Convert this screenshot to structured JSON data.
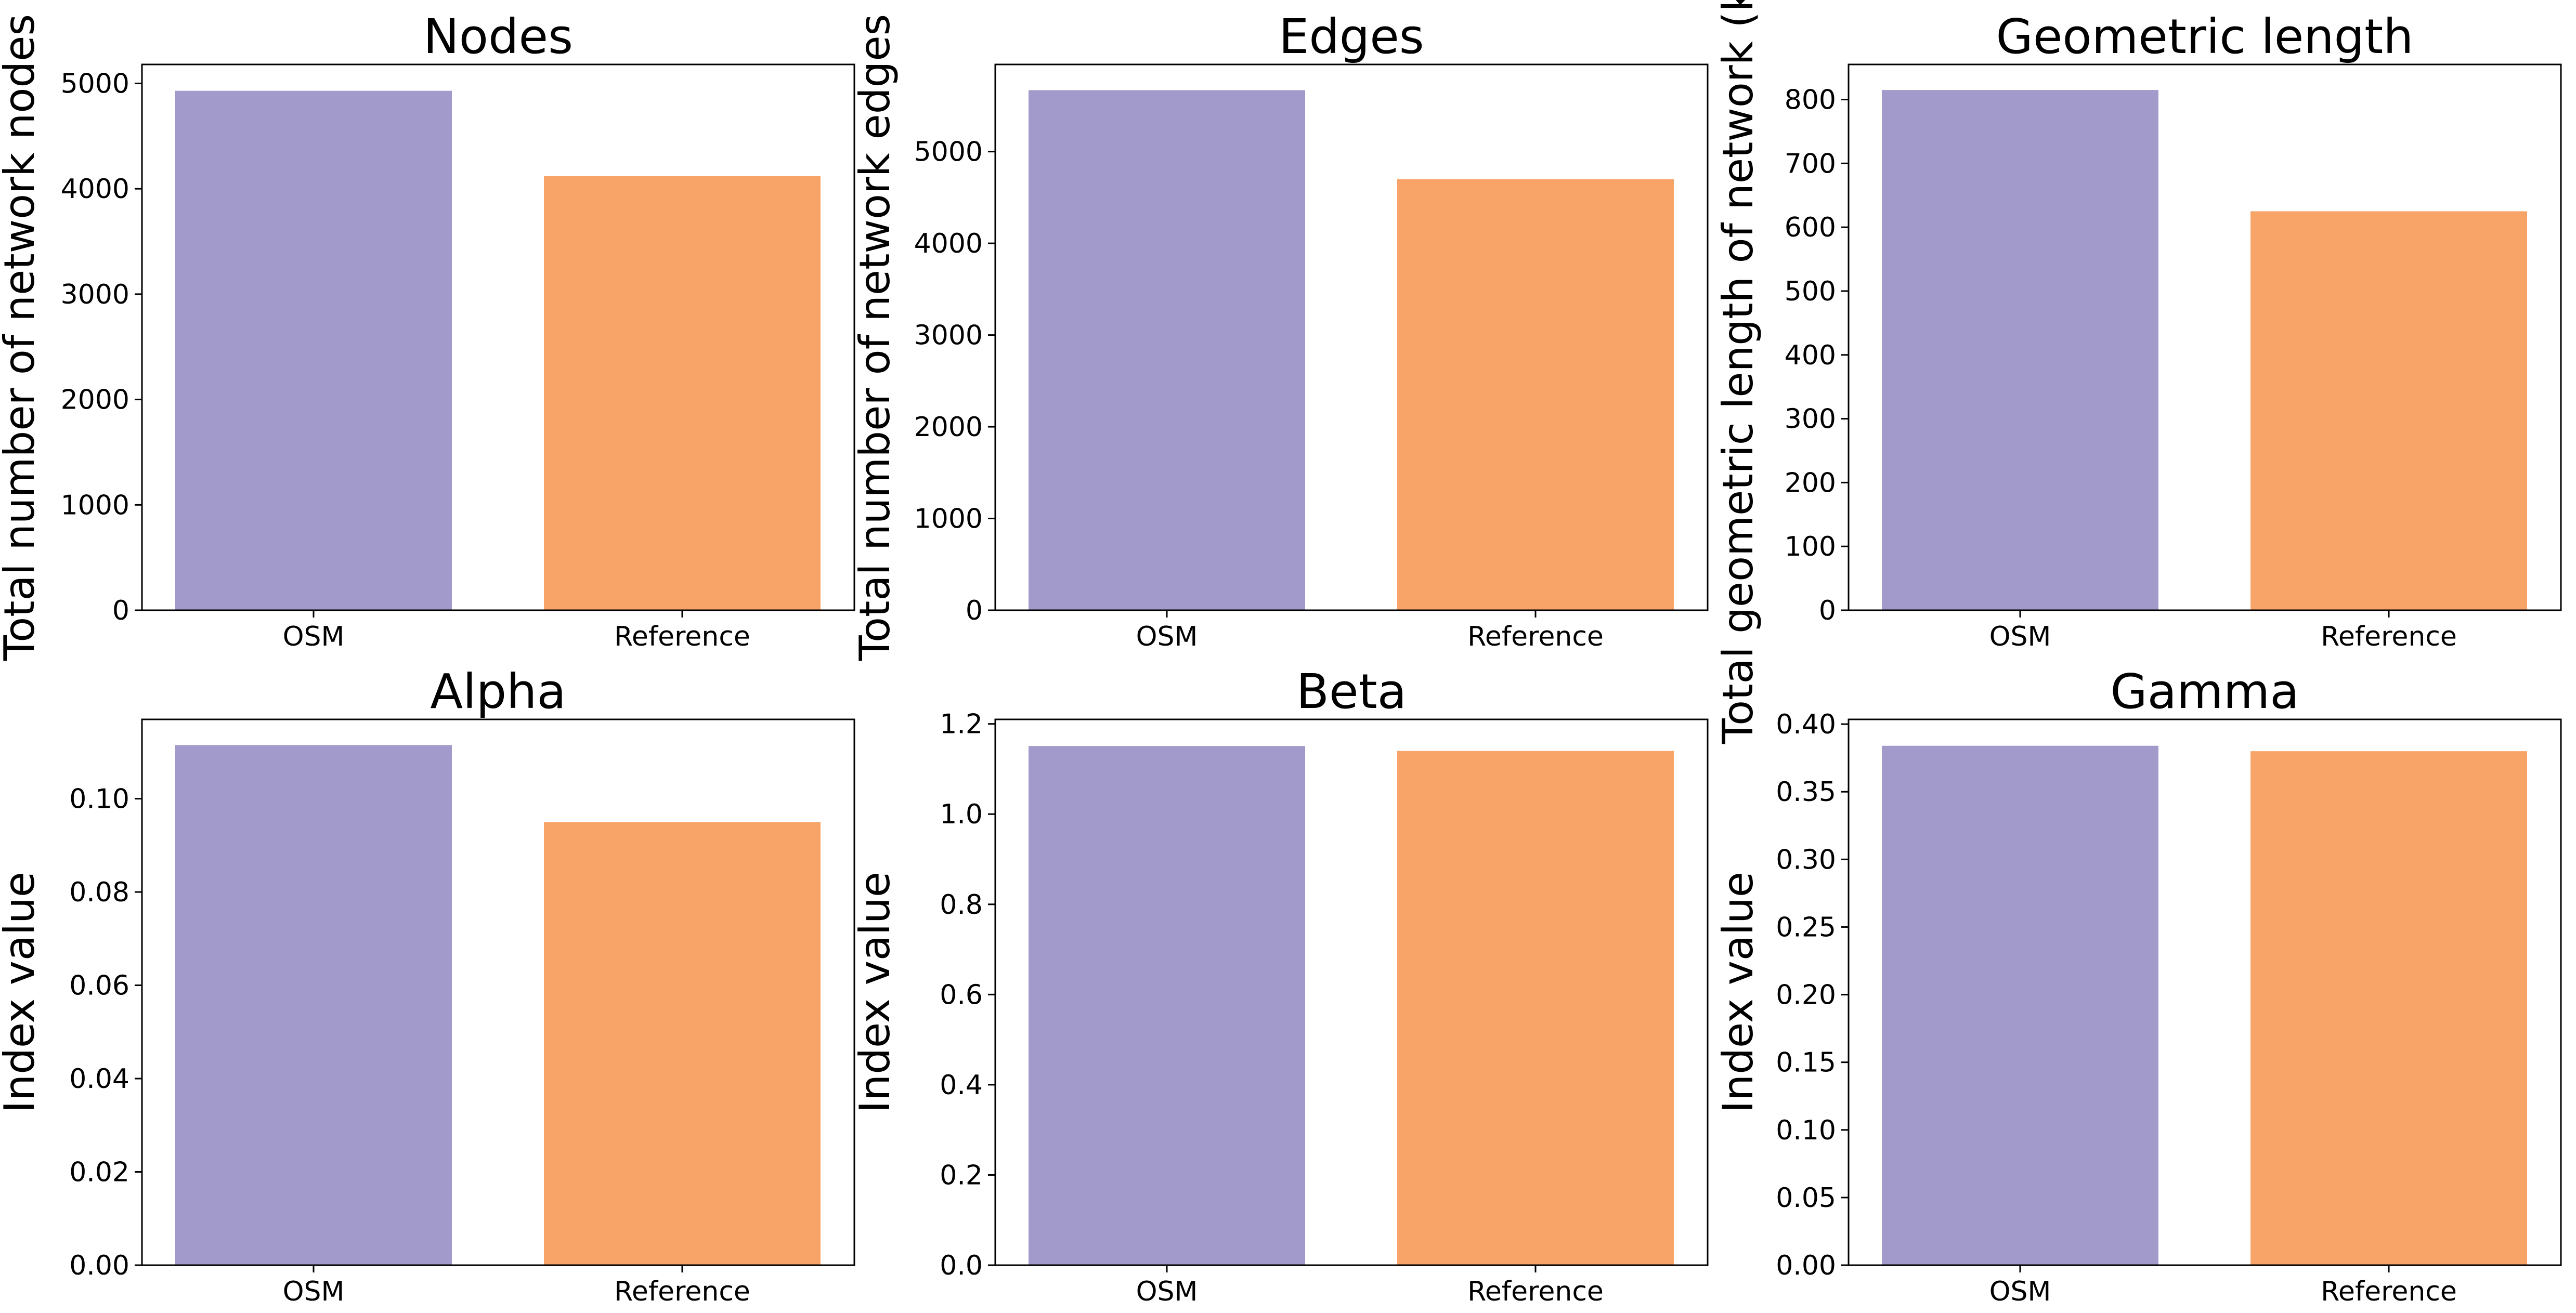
{
  "colors": {
    "OSM": "#a29aca",
    "Reference": "#f8a469",
    "axis": "#000000",
    "background": "#ffffff"
  },
  "chart_data": [
    {
      "type": "bar",
      "title": "Nodes",
      "ylabel": "Total number of network nodes",
      "categories": [
        "OSM",
        "Reference"
      ],
      "values": [
        4930,
        4120
      ],
      "ylim": [
        0,
        5180
      ],
      "yticks": [
        0,
        1000,
        2000,
        3000,
        4000,
        5000
      ],
      "ytick_labels": [
        "0",
        "1000",
        "2000",
        "3000",
        "4000",
        "5000"
      ],
      "grid": false
    },
    {
      "type": "bar",
      "title": "Edges",
      "ylabel": "Total number of network edges",
      "categories": [
        "OSM",
        "Reference"
      ],
      "values": [
        5670,
        4700
      ],
      "ylim": [
        0,
        5950
      ],
      "yticks": [
        0,
        1000,
        2000,
        3000,
        4000,
        5000
      ],
      "ytick_labels": [
        "0",
        "1000",
        "2000",
        "3000",
        "4000",
        "5000"
      ],
      "grid": false
    },
    {
      "type": "bar",
      "title": "Geometric length",
      "ylabel": "Total geometric length of network (km)",
      "categories": [
        "OSM",
        "Reference"
      ],
      "values": [
        815,
        625
      ],
      "ylim": [
        0,
        855
      ],
      "yticks": [
        0,
        100,
        200,
        300,
        400,
        500,
        600,
        700,
        800
      ],
      "ytick_labels": [
        "0",
        "100",
        "200",
        "300",
        "400",
        "500",
        "600",
        "700",
        "800"
      ],
      "grid": false
    },
    {
      "type": "bar",
      "title": "Alpha",
      "ylabel": "Index value",
      "categories": [
        "OSM",
        "Reference"
      ],
      "values": [
        0.1115,
        0.095
      ],
      "ylim": [
        0,
        0.117
      ],
      "yticks": [
        0,
        0.02,
        0.04,
        0.06,
        0.08,
        0.1
      ],
      "ytick_labels": [
        "0.00",
        "0.02",
        "0.04",
        "0.06",
        "0.08",
        "0.10"
      ],
      "grid": false
    },
    {
      "type": "bar",
      "title": "Beta",
      "ylabel": "Index value",
      "categories": [
        "OSM",
        "Reference"
      ],
      "values": [
        1.151,
        1.14
      ],
      "ylim": [
        0,
        1.21
      ],
      "yticks": [
        0,
        0.2,
        0.4,
        0.6,
        0.8,
        1.0,
        1.2
      ],
      "ytick_labels": [
        "0.0",
        "0.2",
        "0.4",
        "0.6",
        "0.8",
        "1.0",
        "1.2"
      ],
      "grid": false
    },
    {
      "type": "bar",
      "title": "Gamma",
      "ylabel": "Index value",
      "categories": [
        "OSM",
        "Reference"
      ],
      "values": [
        0.384,
        0.38
      ],
      "ylim": [
        0,
        0.4035
      ],
      "yticks": [
        0,
        0.05,
        0.1,
        0.15,
        0.2,
        0.25,
        0.3,
        0.35,
        0.4
      ],
      "ytick_labels": [
        "0.00",
        "0.05",
        "0.10",
        "0.15",
        "0.20",
        "0.25",
        "0.30",
        "0.35",
        "0.40"
      ],
      "grid": false
    }
  ]
}
